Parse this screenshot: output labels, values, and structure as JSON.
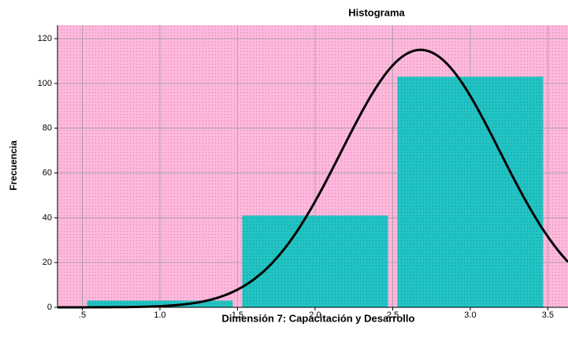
{
  "chart_data": {
    "type": "histogram",
    "title": "Histograma",
    "x_label": "Dimensión 7: Capacitación y Desarrollo",
    "y_label": "Frecuencia",
    "bins": [
      0.5,
      1.5,
      2.5,
      3.5
    ],
    "values": [
      3,
      41,
      103
    ],
    "color": "#22c3c3",
    "background": "#ffb8dc",
    "normal_curve": {
      "mean": 2.68,
      "std": 0.51,
      "color": "#000000"
    },
    "xlim": [
      0.34,
      3.63
    ],
    "ylim": [
      0,
      126
    ],
    "xticks": [
      {
        "value": 0.5,
        "label": ".5"
      },
      {
        "value": 1.0,
        "label": "1.0"
      },
      1.5,
      {
        "value": 2.0,
        "label": "2.0"
      },
      2.5,
      {
        "value": 3.0,
        "label": "3.0"
      },
      3.5
    ],
    "yticks": [
      0,
      20,
      40,
      60,
      80,
      100,
      120
    ],
    "grid": true
  }
}
